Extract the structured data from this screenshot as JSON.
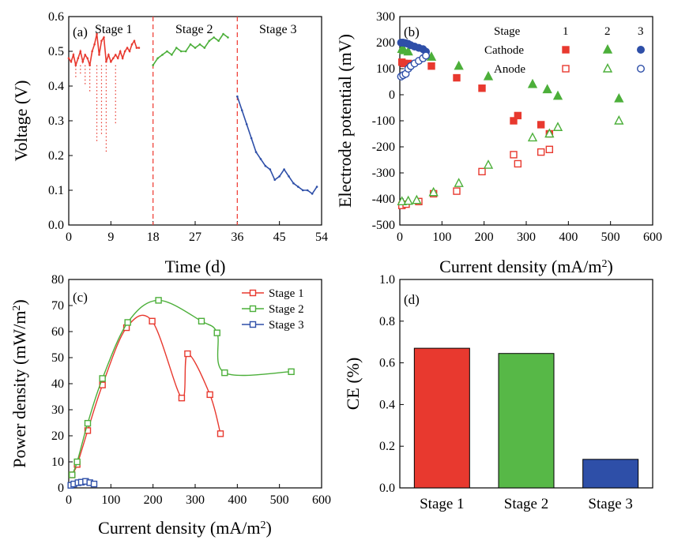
{
  "figure": {
    "panels": [
      {
        "id": "a",
        "label": "(a)"
      },
      {
        "id": "b",
        "label": "(b)"
      },
      {
        "id": "c",
        "label": "(c)"
      },
      {
        "id": "d",
        "label": "(d)"
      }
    ]
  },
  "chart_data": [
    {
      "panel": "(a)",
      "type": "scatter",
      "xlabel": "Time (d)",
      "ylabel": "Voltage (V)",
      "xlim": [
        0,
        54
      ],
      "ylim": [
        0.0,
        0.6
      ],
      "xticks": [
        "0",
        "9",
        "18",
        "27",
        "36",
        "45",
        "54"
      ],
      "yticks": [
        "0.0",
        "0.1",
        "0.2",
        "0.3",
        "0.4",
        "0.5",
        "0.6"
      ],
      "stage_labels": [
        "Stage 1",
        "Stage 2",
        "Stage 3"
      ],
      "stage_boundaries": [
        18,
        36
      ],
      "colors": {
        "stage1": "#e8392f",
        "stage2": "#4caf3a",
        "stage3": "#2e4fa8",
        "boundary": "#f0443c"
      },
      "series": [
        {
          "name": "Stage 1",
          "x": [
            0,
            0.5,
            1,
            1.5,
            2,
            2.5,
            3,
            3.5,
            4,
            4.5,
            5,
            5.5,
            6,
            6.5,
            7,
            7.5,
            8,
            8.5,
            9,
            9.5,
            10,
            10.5,
            11,
            11.5,
            12,
            12.5,
            13,
            13.5,
            14,
            14.5,
            15
          ],
          "y": [
            0.48,
            0.47,
            0.49,
            0.46,
            0.48,
            0.5,
            0.47,
            0.49,
            0.48,
            0.46,
            0.5,
            0.52,
            0.55,
            0.49,
            0.53,
            0.54,
            0.47,
            0.49,
            0.47,
            0.48,
            0.49,
            0.48,
            0.5,
            0.48,
            0.5,
            0.51,
            0.5,
            0.52,
            0.53,
            0.51,
            0.51
          ]
        },
        {
          "name": "Stage 1 dips",
          "x": [
            1.5,
            2.5,
            3.5,
            4.5,
            6,
            7,
            8,
            10
          ],
          "y": [
            0.42,
            0.43,
            0.4,
            0.38,
            0.24,
            0.26,
            0.21,
            0.29
          ]
        },
        {
          "name": "Stage 2",
          "x": [
            18,
            19,
            20,
            21,
            22,
            23,
            24,
            25,
            26,
            27,
            28,
            29,
            30,
            31,
            32,
            33,
            34
          ],
          "y": [
            0.46,
            0.48,
            0.49,
            0.5,
            0.49,
            0.51,
            0.5,
            0.5,
            0.52,
            0.51,
            0.52,
            0.51,
            0.53,
            0.54,
            0.53,
            0.55,
            0.54
          ]
        },
        {
          "name": "Stage 3",
          "x": [
            36,
            37,
            38,
            39,
            40,
            41,
            42,
            43,
            44,
            45,
            46,
            47,
            48,
            49,
            50,
            51,
            52,
            53
          ],
          "y": [
            0.37,
            0.33,
            0.29,
            0.25,
            0.21,
            0.19,
            0.17,
            0.16,
            0.13,
            0.14,
            0.16,
            0.14,
            0.12,
            0.11,
            0.1,
            0.1,
            0.09,
            0.11
          ]
        }
      ]
    },
    {
      "panel": "(b)",
      "type": "scatter",
      "xlabel": "Current density (mA/m²)",
      "ylabel": "Electrode potential (mV)",
      "xlim": [
        0,
        600
      ],
      "ylim": [
        -500,
        300
      ],
      "xticks": [
        "0",
        "100",
        "200",
        "300",
        "400",
        "500",
        "600"
      ],
      "yticks": [
        "-500",
        "-400",
        "-300",
        "-200",
        "-100",
        "0",
        "100",
        "200",
        "300"
      ],
      "legend": {
        "header": "Stage",
        "columns": [
          "1",
          "2",
          "3"
        ],
        "rows": [
          "Cathode",
          "Anode"
        ]
      },
      "series": [
        {
          "name": "Cathode 1",
          "stage": "1",
          "electrode": "Cathode",
          "color": "#e8392f",
          "marker": "filled-square",
          "x": [
            5,
            10,
            20,
            75,
            135,
            195,
            270,
            280,
            335,
            355
          ],
          "y": [
            125,
            120,
            120,
            110,
            65,
            25,
            -100,
            -80,
            -115,
            -150
          ]
        },
        {
          "name": "Cathode 2",
          "stage": "2",
          "electrode": "Cathode",
          "color": "#4caf3a",
          "marker": "filled-triangle",
          "x": [
            5,
            10,
            20,
            75,
            140,
            210,
            315,
            350,
            375,
            520
          ],
          "y": [
            175,
            170,
            165,
            145,
            110,
            70,
            40,
            20,
            -5,
            -15
          ]
        },
        {
          "name": "Cathode 3",
          "stage": "3",
          "electrode": "Cathode",
          "color": "#2e4fa8",
          "marker": "filled-circle",
          "x": [
            3,
            8,
            14,
            20,
            26,
            35,
            45,
            55,
            62
          ],
          "y": [
            200,
            200,
            198,
            195,
            190,
            185,
            180,
            175,
            165
          ]
        },
        {
          "name": "Anode 1",
          "stage": "1",
          "electrode": "Anode",
          "color": "#e8392f",
          "marker": "open-square",
          "x": [
            5,
            15,
            45,
            80,
            135,
            195,
            270,
            280,
            335,
            355
          ],
          "y": [
            -425,
            -420,
            -410,
            -380,
            -370,
            -295,
            -230,
            -265,
            -220,
            -210
          ]
        },
        {
          "name": "Anode 2",
          "stage": "2",
          "electrode": "Anode",
          "color": "#4caf3a",
          "marker": "open-triangle",
          "x": [
            5,
            20,
            40,
            80,
            140,
            210,
            315,
            355,
            375,
            520
          ],
          "y": [
            -410,
            -408,
            -405,
            -375,
            -340,
            -270,
            -165,
            -150,
            -125,
            -100
          ]
        },
        {
          "name": "Anode 3",
          "stage": "3",
          "electrode": "Anode",
          "color": "#2e4fa8",
          "marker": "open-circle",
          "x": [
            3,
            8,
            14,
            20,
            26,
            35,
            45,
            55,
            62
          ],
          "y": [
            70,
            75,
            80,
            100,
            110,
            120,
            130,
            140,
            150
          ]
        }
      ]
    },
    {
      "panel": "(c)",
      "type": "line",
      "xlabel": "Current density (mA/m²)",
      "ylabel": "Power density (mW/m²)",
      "xlim": [
        0,
        600
      ],
      "ylim": [
        0,
        80
      ],
      "xticks": [
        "0",
        "100",
        "200",
        "300",
        "400",
        "500",
        "600"
      ],
      "yticks": [
        "0",
        "10",
        "20",
        "30",
        "40",
        "50",
        "60",
        "70",
        "80"
      ],
      "series": [
        {
          "name": "Stage 1",
          "color": "#e8392f",
          "x": [
            8,
            20,
            45,
            80,
            137,
            198,
            268,
            282,
            335,
            360
          ],
          "y": [
            5,
            9,
            22,
            39.5,
            61.5,
            64,
            34.5,
            51.5,
            35.8,
            20.8
          ]
        },
        {
          "name": "Stage 2",
          "color": "#4caf3a",
          "x": [
            8,
            20,
            45,
            80,
            140,
            213,
            315,
            352,
            370,
            528
          ],
          "y": [
            5,
            10,
            24.8,
            42,
            63.5,
            72,
            64,
            59.5,
            44.2,
            44.6
          ]
        },
        {
          "name": "Stage 3",
          "color": "#2e4fa8",
          "x": [
            5,
            12,
            22,
            30,
            40,
            50,
            60
          ],
          "y": [
            1,
            1.5,
            2,
            2.2,
            2.5,
            2,
            1.5
          ]
        }
      ]
    },
    {
      "panel": "(d)",
      "type": "bar",
      "ylabel": "CE (%)",
      "ylim": [
        0,
        1.0
      ],
      "yticks": [
        "0.0",
        "0.2",
        "0.4",
        "0.6",
        "0.8",
        "1.0"
      ],
      "categories": [
        "Stage 1",
        "Stage 2",
        "Stage 3"
      ],
      "values": [
        0.67,
        0.645,
        0.137
      ],
      "colors": [
        "#e8392f",
        "#57b847",
        "#2e4fa8"
      ]
    }
  ]
}
